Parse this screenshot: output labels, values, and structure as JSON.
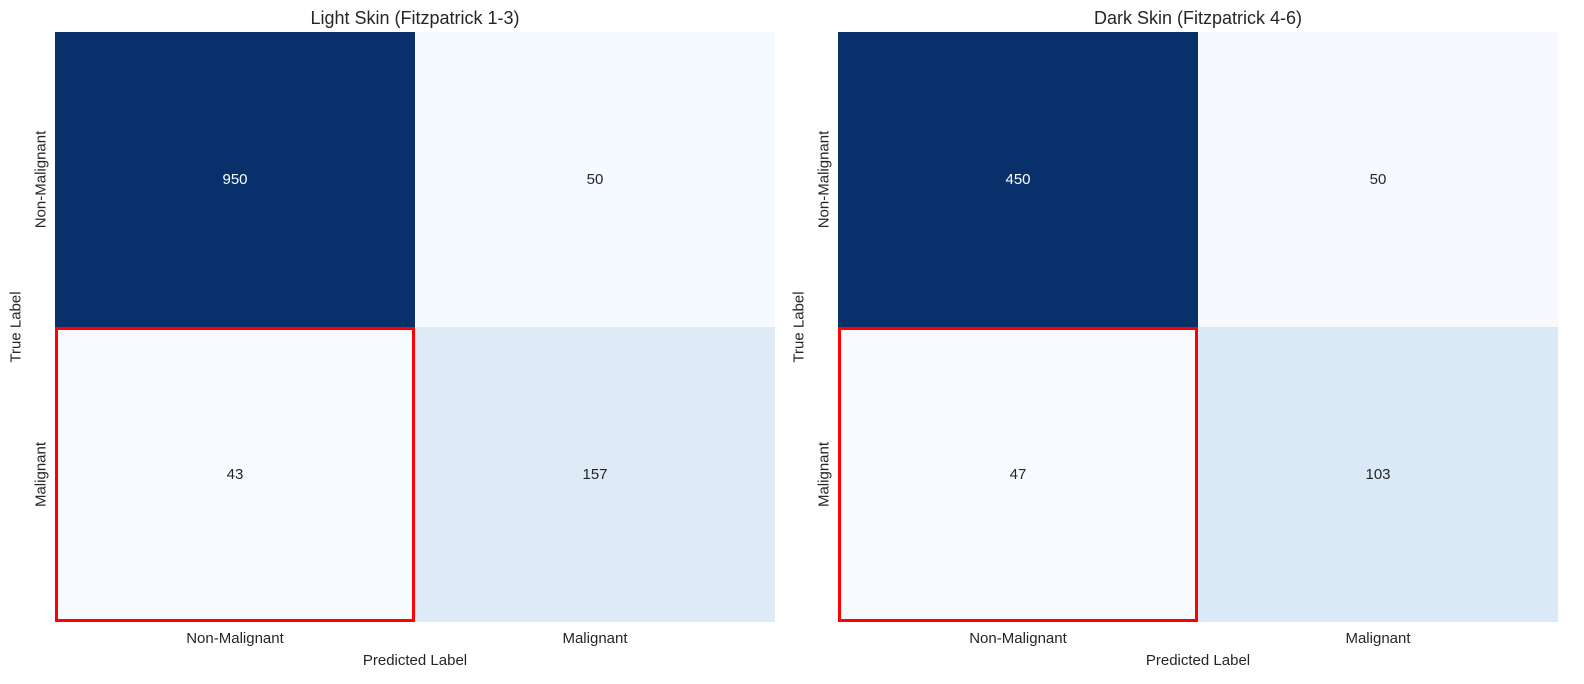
{
  "chart_data": [
    {
      "type": "heatmap",
      "title": "Light Skin (Fitzpatrick 1-3)",
      "xlabel": "Predicted Label",
      "ylabel": "True Label",
      "x_categories": [
        "Non-Malignant",
        "Malignant"
      ],
      "y_categories": [
        "Non-Malignant",
        "Malignant"
      ],
      "values": [
        [
          950,
          50
        ],
        [
          43,
          157
        ]
      ],
      "colormap": "Blues",
      "highlight_cell": {
        "row": 1,
        "col": 0,
        "color": "#ff0000"
      }
    },
    {
      "type": "heatmap",
      "title": "Dark Skin (Fitzpatrick 4-6)",
      "xlabel": "Predicted Label",
      "ylabel": "True Label",
      "x_categories": [
        "Non-Malignant",
        "Malignant"
      ],
      "y_categories": [
        "Non-Malignant",
        "Malignant"
      ],
      "values": [
        [
          450,
          50
        ],
        [
          47,
          103
        ]
      ],
      "colormap": "Blues",
      "highlight_cell": {
        "row": 1,
        "col": 0,
        "color": "#ff0000"
      }
    }
  ]
}
